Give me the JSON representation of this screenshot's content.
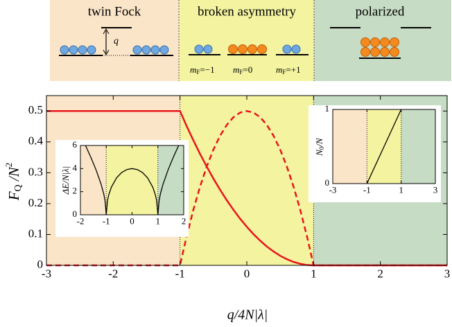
{
  "diagram": {
    "phases": [
      "twin Fock",
      "broken asymmetry",
      "polarized"
    ],
    "gap_label": "q",
    "levels": [
      {
        "symbol": "m",
        "subscript": "F",
        "value": "=−1"
      },
      {
        "symbol": "m",
        "subscript": "F",
        "value": "=0"
      },
      {
        "symbol": "m",
        "subscript": "F",
        "value": "=+1"
      }
    ]
  },
  "chart_data": [
    {
      "type": "line",
      "xlabel": "q/4N|λ|",
      "ylabel": [
        "F",
        "Q",
        " /N",
        "2"
      ],
      "x": [
        -3,
        -1,
        -0.9,
        -0.8,
        -0.7,
        -0.6,
        -0.5,
        -0.4,
        -0.3,
        -0.2,
        -0.1,
        0,
        0.1,
        0.2,
        0.3,
        0.4,
        0.5,
        0.6,
        0.7,
        0.8,
        0.9,
        1,
        3
      ],
      "series": [
        {
          "color": "#e8141b",
          "line_style": "solid",
          "values": [
            0.5,
            0.5,
            0.451,
            0.405,
            0.361,
            0.32,
            0.281,
            0.245,
            0.211,
            0.18,
            0.151,
            0.125,
            0.101,
            0.08,
            0.061,
            0.045,
            0.031,
            0.02,
            0.011,
            0.005,
            0.001,
            0,
            0
          ]
        },
        {
          "color": "#e8141b",
          "line_style": "dashed",
          "values": [
            0,
            0,
            0.095,
            0.18,
            0.255,
            0.32,
            0.375,
            0.42,
            0.455,
            0.48,
            0.495,
            0.5,
            0.495,
            0.48,
            0.455,
            0.42,
            0.375,
            0.32,
            0.255,
            0.18,
            0.095,
            0,
            0
          ]
        }
      ],
      "regions": [
        {
          "from": -3,
          "to": -1,
          "color": "#fbe5c8"
        },
        {
          "from": -1,
          "to": 1,
          "color": "#f4f3a0"
        },
        {
          "from": 1,
          "to": 3,
          "color": "#c6dcc4"
        }
      ],
      "boundaries": [
        -1,
        1
      ],
      "xlim": [
        -3,
        3
      ],
      "ylim": [
        0,
        0.55
      ],
      "xticks": [
        -3,
        -2,
        -1,
        0,
        1,
        2,
        3
      ],
      "yticks": [
        0,
        0.1,
        0.2,
        0.3,
        0.4,
        0.5
      ]
    },
    {
      "type": "line",
      "ylabel": "ΔE/N|λ|",
      "series": [
        {
          "color": "#000000",
          "line_style": "solid",
          "x": [
            -1.8,
            -1.6,
            -1.4,
            -1.2,
            -1.1,
            -1.05,
            -1
          ],
          "values": [
            5.987,
            4.996,
            3.919,
            2.653,
            1.833,
            1.281,
            0
          ]
        },
        {
          "color": "#000000",
          "line_style": "solid",
          "x": [
            -1,
            -0.95,
            -0.9,
            -0.8,
            -0.6,
            -0.4,
            -0.2,
            0,
            0.2,
            0.4,
            0.6,
            0.8,
            0.9,
            0.95,
            1
          ],
          "values": [
            0,
            1.249,
            1.744,
            2.4,
            3.2,
            3.666,
            3.919,
            4,
            3.919,
            3.666,
            3.2,
            2.4,
            1.744,
            1.249,
            0
          ]
        },
        {
          "color": "#000000",
          "line_style": "solid",
          "x": [
            1,
            1.05,
            1.1,
            1.2,
            1.4,
            1.6,
            1.8
          ],
          "values": [
            0,
            1.281,
            1.833,
            2.653,
            3.919,
            4.996,
            5.987
          ]
        }
      ],
      "regions": [
        {
          "from": -2,
          "to": -1,
          "color": "#fbe5c8"
        },
        {
          "from": -1,
          "to": 1,
          "color": "#f4f3a0"
        },
        {
          "from": 1,
          "to": 2,
          "color": "#c6dcc4"
        }
      ],
      "boundaries": [
        -1,
        1
      ],
      "xlim": [
        -2,
        2
      ],
      "ylim": [
        0,
        6
      ],
      "xticks": [
        -2,
        -1,
        0,
        1,
        2
      ],
      "yticks": [
        0,
        2,
        4,
        6
      ]
    },
    {
      "type": "line",
      "ylabel": [
        "N",
        "0",
        "/N"
      ],
      "series": [
        {
          "color": "#000000",
          "line_style": "solid",
          "x": [
            -1,
            1
          ],
          "values": [
            0,
            1
          ]
        }
      ],
      "regions": [
        {
          "from": -3,
          "to": -1,
          "color": "#fbe5c8"
        },
        {
          "from": -1,
          "to": 1,
          "color": "#f4f3a0"
        },
        {
          "from": 1,
          "to": 3,
          "color": "#c6dcc4"
        }
      ],
      "boundaries": [
        -1,
        1
      ],
      "xlim": [
        -3,
        3
      ],
      "ylim": [
        0,
        1
      ],
      "xticks": [
        -3,
        -1,
        1,
        3
      ],
      "yticks": [
        0,
        1
      ]
    }
  ]
}
